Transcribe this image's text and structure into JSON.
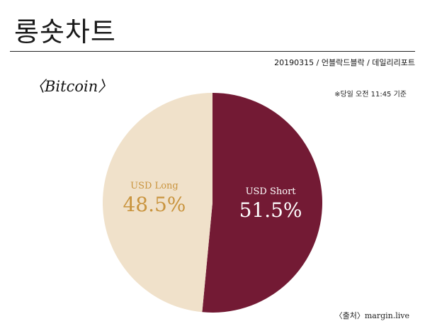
{
  "header": {
    "title": "롱숏차트",
    "meta": "20190315 / 언블락드블락 / 데일리리포트"
  },
  "subject": "〈Bitcoin〉",
  "note": "※당일 오전 11:45 기준",
  "source": "〈출처〉margin.live",
  "colors": {
    "long": "#f0e1ca",
    "short": "#731a34",
    "long_text": "#c9943e",
    "short_text": "#ffffff"
  },
  "chart_data": {
    "type": "pie",
    "slices": [
      {
        "label": "USD Short",
        "value": 51.5,
        "value_label": "51.5%"
      },
      {
        "label": "USD Long",
        "value": 48.5,
        "value_label": "48.5%"
      }
    ]
  }
}
